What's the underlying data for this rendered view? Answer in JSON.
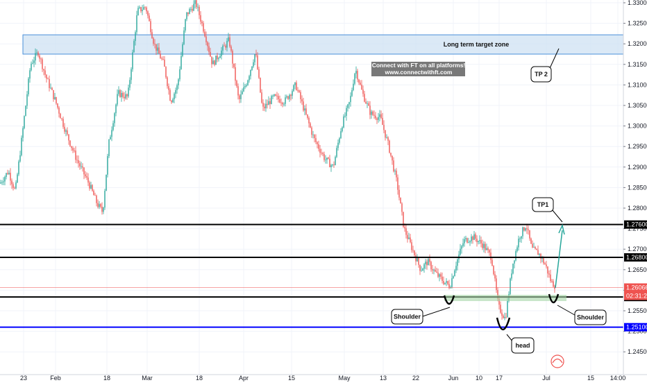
{
  "chart_data": {
    "type": "candlestick",
    "ylim": [
      1.2418,
      1.3315
    ],
    "price_ticks": [
      "1.33000",
      "1.32500",
      "1.32000",
      "1.31500",
      "1.31000",
      "1.30500",
      "1.30000",
      "1.29500",
      "1.29000",
      "1.28500",
      "1.28000",
      "1.27500",
      "1.27000",
      "1.26500",
      "1.26000",
      "1.25500",
      "1.25000",
      "1.24500"
    ],
    "date_ticks": [
      "23",
      "Feb",
      "18",
      "Mar",
      "18",
      "Apr",
      "15",
      "May",
      "13",
      "22",
      "Jun",
      "10",
      "17",
      "Jul",
      "15",
      "14:00"
    ],
    "horizontal_levels": [
      {
        "name": "level-1-2760",
        "value": 1.276,
        "label": "1.27600",
        "color": "#000000"
      },
      {
        "name": "level-1-2680",
        "value": 1.268,
        "label": "1.26800",
        "color": "#000000"
      },
      {
        "name": "level-1-25835",
        "value": 1.25835,
        "label": "1.25835",
        "color": "#000000"
      },
      {
        "name": "level-1-2510",
        "value": 1.251,
        "label": "1.25100",
        "color": "#0000ff"
      }
    ],
    "current_price": {
      "value": 1.26066,
      "label": "1.26066",
      "countdown": "02:31:29",
      "color": "#ef5350"
    },
    "target_zone": {
      "label": "Long term target zone",
      "low": 1.3175,
      "high": 1.3222
    },
    "annotations": [
      "TP 2",
      "TP1",
      "Shoulder",
      "head",
      "Shoulder"
    ],
    "watermark": {
      "line1": "Connect with FT on all platforms!",
      "line2": "www.connectwithft.com"
    },
    "colors": {
      "up": "#26a69a",
      "down": "#ef5350",
      "zone_fill": "#cfe2f3",
      "zone_stroke": "#4a90d9",
      "arrow": "#26a69a",
      "green_zone": "#a5d6a7"
    }
  }
}
